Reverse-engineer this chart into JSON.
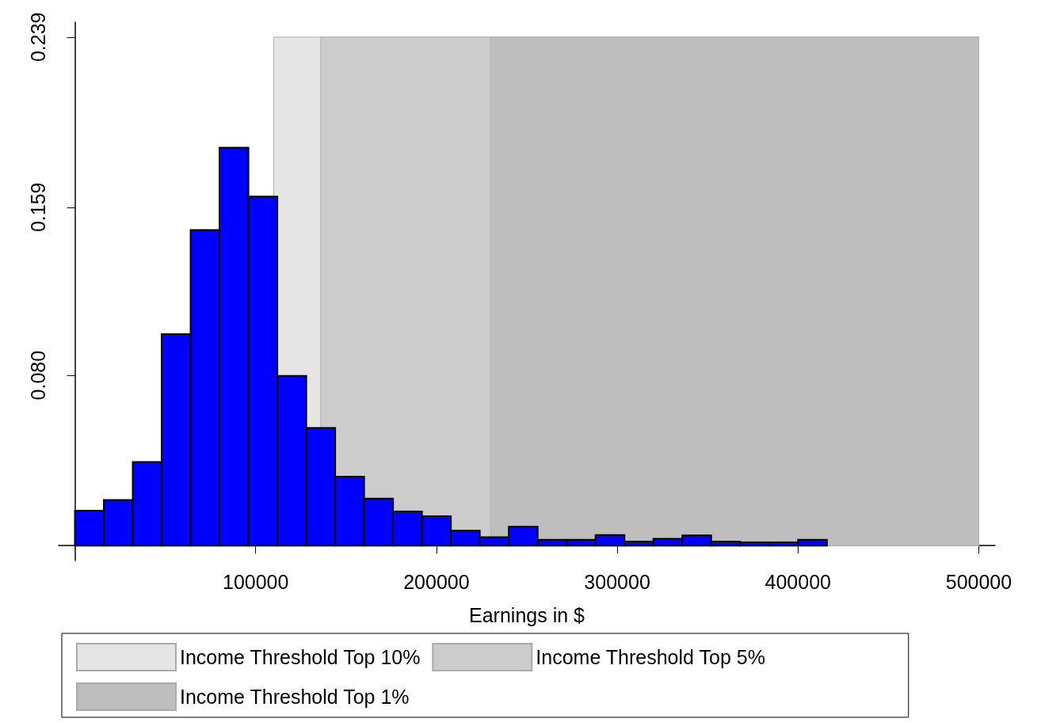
{
  "chart_data": {
    "type": "histogram",
    "xlabel": "Earnings in $",
    "bins": [
      0,
      16000,
      32000,
      48000,
      64000,
      80000,
      96000,
      112000,
      128000,
      144000,
      160000,
      176000,
      192000,
      208000,
      224000,
      240000,
      256000,
      272000,
      288000,
      304000,
      320000,
      336000,
      352000,
      368000,
      384000,
      400000,
      416000
    ],
    "values": [
      0.0164,
      0.0215,
      0.0393,
      0.0994,
      0.1483,
      0.187,
      0.1641,
      0.0798,
      0.0553,
      0.0324,
      0.0221,
      0.0161,
      0.0138,
      0.007,
      0.004,
      0.0089,
      0.0028,
      0.0028,
      0.005,
      0.0019,
      0.0032,
      0.0048,
      0.0019,
      0.0016,
      0.0016,
      0.0028
    ],
    "color": "#0000ff",
    "xlim": [
      -9000,
      509000
    ],
    "xticks": [
      100000,
      200000,
      300000,
      400000,
      500000
    ],
    "ylim": [
      -0.007,
      0.246
    ],
    "yticks": [
      {
        "value": 0.08,
        "label": "0.080"
      },
      0.159,
      0.239
    ],
    "bands": [
      {
        "axis": "x",
        "from": 110000,
        "to": 500000,
        "label": "Income Threshold Top 10%",
        "color": "#e5e5e5"
      },
      {
        "axis": "x",
        "from": 136000,
        "to": 500000,
        "label": "Income Threshold Top 5%",
        "color": "#cccccc"
      },
      {
        "axis": "x",
        "from": 230000,
        "to": 500000,
        "label": "Income Threshold Top 1%",
        "color": "#bebebe"
      }
    ],
    "grid": false,
    "legend": "bottom"
  }
}
